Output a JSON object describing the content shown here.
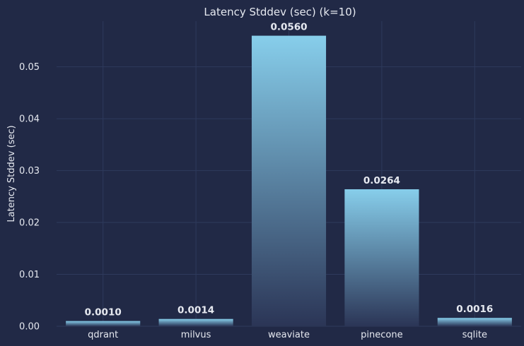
{
  "chart_data": {
    "type": "bar",
    "title": "Latency Stddev (sec) (k=10)",
    "xlabel": "",
    "ylabel": "Latency Stddev (sec)",
    "categories": [
      "qdrant",
      "milvus",
      "weaviate",
      "pinecone",
      "sqlite"
    ],
    "values": [
      0.001,
      0.0014,
      0.056,
      0.0264,
      0.0016
    ],
    "value_labels": [
      "0.0010",
      "0.0014",
      "0.0560",
      "0.0264",
      "0.0016"
    ],
    "ylim": [
      0,
      0.0588
    ],
    "yticks": [
      0.0,
      0.01,
      0.02,
      0.03,
      0.04,
      0.05
    ],
    "ytick_labels": [
      "0.00",
      "0.01",
      "0.02",
      "0.03",
      "0.04",
      "0.05"
    ],
    "grid": true,
    "colors": {
      "background": "#212946",
      "bar_top": "#87ceeb",
      "bar_bottom": "#2b3556",
      "grid": "#2e3a5c",
      "text": "#e6e9f0"
    }
  }
}
